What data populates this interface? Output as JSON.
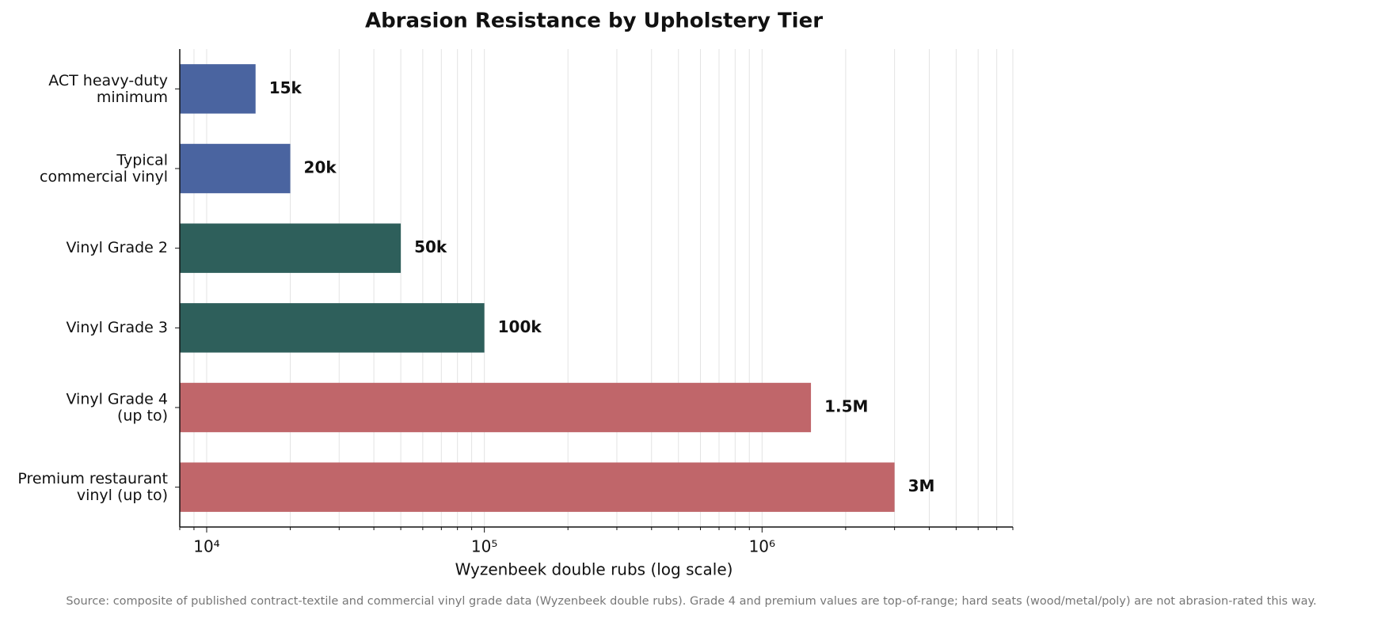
{
  "chart_data": {
    "type": "barh",
    "title": "Abrasion Resistance by Upholstery Tier",
    "categories": [
      "ACT heavy-duty\nminimum",
      "Typical\ncommercial vinyl",
      "Vinyl Grade 2",
      "Vinyl Grade 3",
      "Vinyl Grade 4\n(up to)",
      "Premium restaurant\nvinyl (up to)"
    ],
    "values": [
      15000,
      20000,
      50000,
      100000,
      1500000,
      3000000
    ],
    "value_labels": [
      "15k",
      "20k",
      "50k",
      "100k",
      "1.5M",
      "3M"
    ],
    "colors": [
      "#4a64a0",
      "#4a64a0",
      "#2e5f5b",
      "#2e5f5b",
      "#c0666a",
      "#c0666a"
    ],
    "xlabel": "Wyzenbeek double rubs (log scale)",
    "xscale": "log",
    "xlim": [
      8000,
      8000000
    ],
    "xticks": [
      {
        "value": 10000,
        "label": "10⁴"
      },
      {
        "value": 100000,
        "label": "10⁵"
      },
      {
        "value": 1000000,
        "label": "10⁶"
      }
    ],
    "xminorticks": [
      8000,
      9000,
      20000,
      30000,
      40000,
      50000,
      60000,
      70000,
      80000,
      90000,
      200000,
      300000,
      400000,
      500000,
      600000,
      700000,
      800000,
      900000,
      2000000,
      3000000,
      4000000,
      5000000,
      6000000,
      7000000,
      8000000
    ],
    "grid": true,
    "note": "Source: composite of published contract-textile and commercial vinyl grade data (Wyzenbeek double rubs). Grade 4 and premium values are top-of-range; hard seats (wood/metal/poly) are not abrasion-rated this way."
  }
}
